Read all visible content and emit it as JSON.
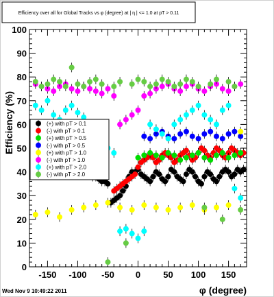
{
  "title": "Efficiency over all for Global Tracks vs φ (degree) at | η | <= 1.0 at pT > 0.11",
  "footer": "Wed Nov  9 10:49:22 2011",
  "chart_data": {
    "type": "scatter",
    "xlabel": "φ (degree)",
    "ylabel": "Efficiency (%)",
    "xlim": [
      -180,
      180
    ],
    "ylim": [
      0,
      100
    ],
    "xticks": [
      "-150",
      "-100",
      "-50",
      "0",
      "50",
      "100",
      "150"
    ],
    "xtick_values": [
      -150,
      -100,
      -50,
      0,
      50,
      100,
      150
    ],
    "yticks": [
      "0",
      "10",
      "20",
      "30",
      "40",
      "50",
      "60",
      "70",
      "80",
      "90",
      "100"
    ],
    "ytick_values": [
      0,
      10,
      20,
      30,
      40,
      50,
      60,
      70,
      80,
      90,
      100
    ],
    "legend_position": "left-middle",
    "series": [
      {
        "name": "(+) with pT > 0.1",
        "color": "#000000",
        "x": [
          -100,
          -95,
          -90,
          -85,
          -80,
          -75,
          -70,
          -65,
          -60,
          -55,
          -50,
          -45,
          -40,
          -35,
          -30,
          -25,
          -20,
          -15,
          -10,
          -5,
          0,
          5,
          10,
          15,
          20,
          25,
          30,
          35,
          40,
          45,
          50,
          55,
          60,
          65,
          70,
          75,
          80,
          85,
          90,
          95,
          100,
          105,
          110,
          115,
          120,
          125,
          130,
          135,
          140,
          145,
          150,
          155,
          160,
          165,
          170,
          175
        ],
        "y": [
          40,
          41,
          42,
          40,
          39,
          38,
          38,
          37,
          36,
          36,
          35,
          27,
          28,
          29,
          30,
          32,
          34,
          38,
          40,
          40,
          41,
          39,
          38,
          37,
          36,
          38,
          40,
          39,
          37,
          36,
          38,
          41,
          40,
          38,
          37,
          36,
          39,
          41,
          40,
          38,
          36,
          35,
          38,
          40,
          39,
          37,
          36,
          38,
          40,
          41,
          40,
          38,
          39,
          41,
          40,
          41
        ]
      },
      {
        "name": "(-) with pT > 0.1",
        "color": "#ff0000",
        "x": [
          -40,
          -35,
          -30,
          -25,
          -20,
          -15,
          -10,
          -5,
          0,
          5,
          10,
          15,
          20,
          25,
          30,
          35,
          40,
          45,
          50,
          55,
          60,
          65,
          70,
          75,
          80,
          85,
          90,
          95,
          100,
          105,
          110,
          115,
          120,
          125,
          130,
          135,
          140,
          145,
          150,
          155,
          160,
          165,
          170,
          175
        ],
        "y": [
          32,
          33,
          34,
          35,
          36,
          37,
          38,
          39,
          42,
          44,
          45,
          46,
          47,
          46,
          44,
          45,
          47,
          48,
          47,
          46,
          44,
          45,
          47,
          48,
          49,
          47,
          45,
          46,
          48,
          50,
          49,
          47,
          46,
          48,
          50,
          49,
          47,
          46,
          48,
          50,
          49,
          48,
          47,
          48
        ]
      },
      {
        "name": "(+) with pT > 0.5",
        "color": "#00dd00",
        "x": [
          0,
          10,
          20,
          30,
          40,
          50,
          60,
          70,
          80,
          90,
          100,
          110,
          120,
          130,
          140,
          150,
          160,
          170
        ],
        "y": [
          46,
          47,
          48,
          47,
          46,
          48,
          47,
          45,
          46,
          47,
          48,
          46,
          45,
          47,
          48,
          46,
          47,
          48
        ]
      },
      {
        "name": "(-) with pT > 0.5",
        "color": "#0000ff",
        "x": [
          10,
          20,
          30,
          40,
          50,
          60,
          70,
          80,
          90,
          100,
          110,
          120,
          130,
          140,
          150,
          160,
          170
        ],
        "y": [
          55,
          54,
          56,
          57,
          55,
          54,
          56,
          57,
          55,
          54,
          56,
          57,
          55,
          54,
          56,
          57,
          55
        ]
      },
      {
        "name": "(+) with pT > 1.0",
        "color": "#ffff00",
        "x": [
          -170,
          -150,
          -130,
          -110,
          -90,
          -70,
          -50,
          -30,
          -10,
          10,
          30,
          50,
          70,
          90,
          110,
          130,
          150,
          170
        ],
        "y": [
          22,
          23,
          21,
          24,
          25,
          26,
          27,
          25,
          24,
          26,
          25,
          24,
          25,
          26,
          24,
          25,
          26,
          57
        ]
      },
      {
        "name": "(-) with pT > 1.0",
        "color": "#ff00ff",
        "x": [
          -170,
          -160,
          -150,
          -140,
          -130,
          -120,
          -110,
          -100,
          -90,
          -80,
          -70,
          -60,
          -50,
          -40,
          -30,
          -20,
          -10,
          0,
          10,
          20,
          30,
          40,
          50,
          60,
          70,
          80,
          90,
          100,
          110,
          120,
          130,
          140,
          150,
          160,
          170
        ],
        "y": [
          77,
          76,
          75,
          74,
          76,
          77,
          75,
          74,
          76,
          75,
          74,
          73,
          75,
          72,
          60,
          62,
          64,
          66,
          72,
          73,
          75,
          76,
          77,
          75,
          74,
          76,
          77,
          75,
          74,
          76,
          77,
          75,
          74,
          76,
          77
        ]
      },
      {
        "name": "(+) with pT > 2.0",
        "color": "#00ffff",
        "x": [
          -170,
          -160,
          -150,
          -140,
          -130,
          -120,
          -110,
          -100,
          -90,
          -80,
          -70,
          -60,
          -50,
          -40,
          -30,
          -20,
          -10,
          0,
          10,
          20,
          30,
          40,
          50,
          60,
          70,
          80,
          90,
          100,
          110,
          120,
          130,
          140,
          150,
          160,
          170
        ],
        "y": [
          68,
          66,
          70,
          64,
          62,
          66,
          68,
          65,
          63,
          60,
          58,
          55,
          50,
          48,
          15,
          16,
          14,
          12,
          15,
          60,
          58,
          56,
          54,
          60,
          62,
          64,
          66,
          68,
          64,
          62,
          60,
          66,
          68,
          33,
          29
        ]
      },
      {
        "name": "(-) with pT > 2.0",
        "color": "#66cc44",
        "x": [
          -170,
          -160,
          -150,
          -140,
          -130,
          -120,
          -110,
          -100,
          -90,
          -80,
          -70,
          -60,
          -50,
          -40,
          -30,
          -20,
          -10,
          0,
          10,
          20,
          30,
          40,
          50,
          60,
          70,
          80,
          90,
          100,
          110,
          120,
          130,
          140,
          150,
          160,
          170
        ],
        "y": [
          78,
          76,
          77,
          79,
          78,
          76,
          84,
          77,
          76,
          78,
          79,
          77,
          2,
          76,
          78,
          10,
          77,
          79,
          78,
          76,
          77,
          79,
          78,
          76,
          77,
          79,
          78,
          76,
          25,
          77,
          79,
          20,
          78,
          76,
          24
        ]
      }
    ]
  }
}
